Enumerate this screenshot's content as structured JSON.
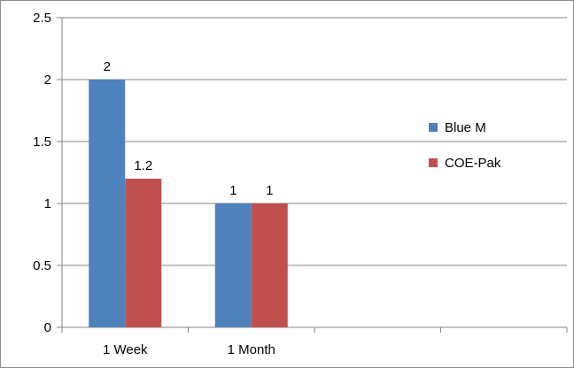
{
  "chart_data": {
    "type": "bar",
    "categories": [
      "1 Week",
      "1 Month",
      "",
      ""
    ],
    "series": [
      {
        "name": "Blue M",
        "values": [
          2,
          1,
          null,
          null
        ],
        "color": "#4f81bd"
      },
      {
        "name": "COE-Pak",
        "values": [
          1.2,
          1,
          null,
          null
        ],
        "color": "#c0504d"
      }
    ],
    "data_labels": [
      [
        "2",
        "1",
        null,
        null
      ],
      [
        "1.2",
        "1",
        null,
        null
      ]
    ],
    "yticks": [
      "0",
      "0.5",
      "1",
      "1.5",
      "2",
      "2.5"
    ],
    "ylim": [
      0,
      2.5
    ],
    "title": "",
    "xlabel": "",
    "ylabel": "",
    "grid": true,
    "legend_position": "right"
  }
}
